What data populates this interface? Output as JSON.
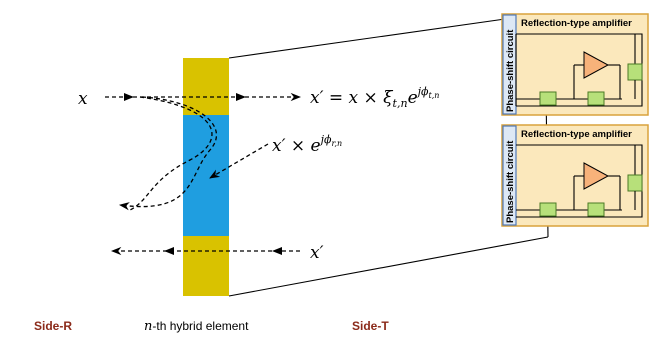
{
  "labels": {
    "side_r": "Side-R",
    "element_n": "n",
    "element_suffix": "-th hybrid element",
    "side_t": "Side-T"
  },
  "math": {
    "x_in": "x",
    "x_prime_t": "x′",
    "t_eq": " = ",
    "t_x": "x",
    "t_times": " × ",
    "t_xi": "ξ",
    "t_xi_sub": "t,n",
    "t_e": "e",
    "t_exp_j": "j",
    "t_exp_phi": "ϕ",
    "t_exp_sub": "t,n",
    "x_prime_r": "x′",
    "r_times": " × ",
    "r_e": "e",
    "r_exp_j": "j",
    "r_exp_phi": "ϕ",
    "r_exp_sub": "r,n",
    "x_prime_in": "x′"
  },
  "circuit_boxes": [
    {
      "side_label": "Phase-shift circuit",
      "title": "Reflection-type amplifier"
    },
    {
      "side_label": "Phase-shift circuit",
      "title": "Reflection-type amplifier"
    }
  ],
  "colors": {
    "yellow": "#d9c200",
    "blue": "#1f9ee0",
    "box_fill": "#fbe8bc",
    "box_border": "#d9a23c",
    "side_panel": "#dde8f5",
    "side_border": "#4f79b8",
    "amp_fill": "#f7b27a",
    "green": "#b7e07a",
    "green_border": "#4b7a25"
  }
}
